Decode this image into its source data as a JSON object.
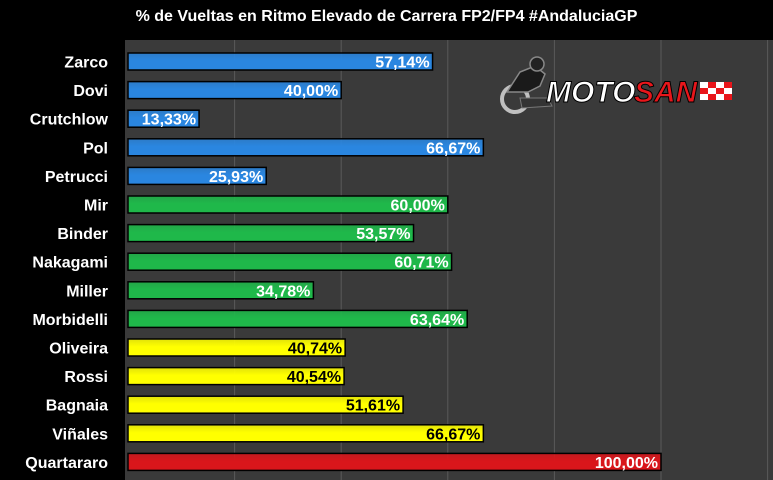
{
  "chart_data": {
    "type": "bar",
    "orientation": "horizontal",
    "title": "% de Vueltas en Ritmo Elevado de Carrera FP2/FP4 #AndaluciaGP",
    "categories": [
      "Zarco",
      "Dovi",
      "Crutchlow",
      "Pol",
      "Petrucci",
      "Mir",
      "Binder",
      "Nakagami",
      "Miller",
      "Morbidelli",
      "Oliveira",
      "Rossi",
      "Bagnaia",
      "Viñales",
      "Quartararo"
    ],
    "values": [
      57.14,
      40.0,
      13.33,
      66.67,
      25.93,
      60.0,
      53.57,
      60.71,
      34.78,
      63.64,
      40.74,
      40.54,
      51.61,
      66.67,
      100.0
    ],
    "labels": [
      "57,14%",
      "40,00%",
      "13,33%",
      "66,67%",
      "25,93%",
      "60,00%",
      "53,57%",
      "60,71%",
      "34,78%",
      "63,64%",
      "40,74%",
      "40,54%",
      "51,61%",
      "66,67%",
      "100,00%"
    ],
    "colors": [
      "#2a86e0",
      "#2a86e0",
      "#2a86e0",
      "#2a86e0",
      "#2a86e0",
      "#1fb84a",
      "#1fb84a",
      "#1fb84a",
      "#1fb84a",
      "#1fb84a",
      "#ffff00",
      "#ffff00",
      "#ffff00",
      "#ffff00",
      "#d9161b"
    ],
    "label_colors": [
      "#ffffff",
      "#ffffff",
      "#ffffff",
      "#ffffff",
      "#ffffff",
      "#ffffff",
      "#ffffff",
      "#ffffff",
      "#ffffff",
      "#ffffff",
      "#000000",
      "#000000",
      "#000000",
      "#000000",
      "#ffffff"
    ],
    "xlim": [
      0,
      120
    ],
    "grid": true,
    "legend": "none"
  },
  "logo": {
    "text": "MOTOSAN",
    "moto_color": "#ffffff",
    "san_color": "#e8161b"
  }
}
